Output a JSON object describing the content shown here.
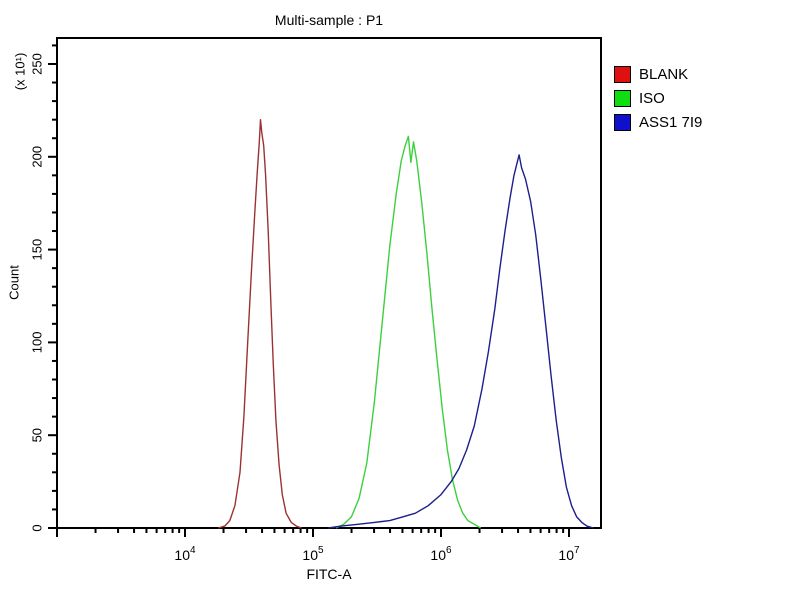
{
  "title": "Multi-sample : P1",
  "axes_labels": {
    "x": "FITC-A",
    "y": "Count",
    "y_multiplier": "(x 10¹)"
  },
  "legend": {
    "position": "top-right-outside",
    "items": [
      {
        "label": "BLANK",
        "color": "#e01010"
      },
      {
        "label": "ISO",
        "color": "#10dd10"
      },
      {
        "label": "ASS1 7I9",
        "color": "#1010cc"
      }
    ]
  },
  "colors": {
    "axis": "#000000",
    "background": "#ffffff",
    "curve_blank": "#993333",
    "curve_iso": "#3ecf3e",
    "curve_ass1": "#1e1e8c"
  },
  "chart_data": {
    "type": "line",
    "subtype": "flow-cytometry-histogram-overlay",
    "title": "Multi-sample : P1",
    "xlabel": "FITC-A",
    "ylabel": "Count",
    "y_multiplier_label": "(x 10¹)",
    "x_scale": "log10",
    "xlim_log10": [
      3,
      7.25
    ],
    "x_major_tick_exponents": [
      4,
      5,
      6,
      7
    ],
    "ylim": [
      0,
      264
    ],
    "y_major_ticks": [
      0,
      50,
      100,
      150,
      200,
      250
    ],
    "y_minor_step": 10,
    "grid": false,
    "legend_position": "top-right-outside",
    "series": [
      {
        "name": "BLANK",
        "color": "#993333",
        "peak_x_log10": 4.59,
        "peak_count": 220,
        "points_log10x_count": [
          [
            4.26,
            0
          ],
          [
            4.31,
            1
          ],
          [
            4.35,
            4
          ],
          [
            4.39,
            12
          ],
          [
            4.43,
            30
          ],
          [
            4.46,
            60
          ],
          [
            4.49,
            100
          ],
          [
            4.52,
            140
          ],
          [
            4.545,
            170
          ],
          [
            4.565,
            192
          ],
          [
            4.58,
            207
          ],
          [
            4.59,
            220
          ],
          [
            4.6,
            213
          ],
          [
            4.615,
            206
          ],
          [
            4.63,
            190
          ],
          [
            4.65,
            160
          ],
          [
            4.67,
            122
          ],
          [
            4.69,
            88
          ],
          [
            4.71,
            58
          ],
          [
            4.735,
            34
          ],
          [
            4.76,
            18
          ],
          [
            4.79,
            8
          ],
          [
            4.83,
            3
          ],
          [
            4.87,
            1
          ],
          [
            4.91,
            0
          ]
        ]
      },
      {
        "name": "ISO",
        "color": "#3ecf3e",
        "peak_x_log10": 5.745,
        "peak_count": 211,
        "points_log10x_count": [
          [
            5.18,
            0
          ],
          [
            5.24,
            2
          ],
          [
            5.3,
            6
          ],
          [
            5.36,
            16
          ],
          [
            5.42,
            35
          ],
          [
            5.48,
            68
          ],
          [
            5.54,
            110
          ],
          [
            5.6,
            152
          ],
          [
            5.65,
            180
          ],
          [
            5.69,
            198
          ],
          [
            5.72,
            206
          ],
          [
            5.745,
            211
          ],
          [
            5.765,
            197
          ],
          [
            5.785,
            208
          ],
          [
            5.81,
            198
          ],
          [
            5.85,
            175
          ],
          [
            5.89,
            148
          ],
          [
            5.93,
            118
          ],
          [
            5.97,
            90
          ],
          [
            6.01,
            64
          ],
          [
            6.05,
            42
          ],
          [
            6.09,
            26
          ],
          [
            6.13,
            15
          ],
          [
            6.17,
            8
          ],
          [
            6.21,
            4
          ],
          [
            6.26,
            2
          ],
          [
            6.31,
            0
          ]
        ]
      },
      {
        "name": "ASS1 7I9",
        "color": "#1e1e8c",
        "peak_x_log10": 6.61,
        "peak_count": 201,
        "points_log10x_count": [
          [
            5.12,
            0
          ],
          [
            5.22,
            1
          ],
          [
            5.35,
            2
          ],
          [
            5.48,
            3
          ],
          [
            5.6,
            4
          ],
          [
            5.7,
            6
          ],
          [
            5.8,
            8
          ],
          [
            5.9,
            12
          ],
          [
            6.0,
            18
          ],
          [
            6.08,
            25
          ],
          [
            6.14,
            32
          ],
          [
            6.2,
            42
          ],
          [
            6.26,
            55
          ],
          [
            6.32,
            75
          ],
          [
            6.37,
            95
          ],
          [
            6.42,
            118
          ],
          [
            6.46,
            140
          ],
          [
            6.5,
            160
          ],
          [
            6.54,
            178
          ],
          [
            6.57,
            190
          ],
          [
            6.595,
            197
          ],
          [
            6.61,
            201
          ],
          [
            6.63,
            194
          ],
          [
            6.66,
            188
          ],
          [
            6.7,
            176
          ],
          [
            6.74,
            158
          ],
          [
            6.78,
            134
          ],
          [
            6.82,
            108
          ],
          [
            6.86,
            82
          ],
          [
            6.9,
            58
          ],
          [
            6.94,
            38
          ],
          [
            6.98,
            22
          ],
          [
            7.02,
            12
          ],
          [
            7.06,
            6
          ],
          [
            7.1,
            3
          ],
          [
            7.14,
            1
          ],
          [
            7.19,
            0
          ]
        ]
      }
    ]
  }
}
